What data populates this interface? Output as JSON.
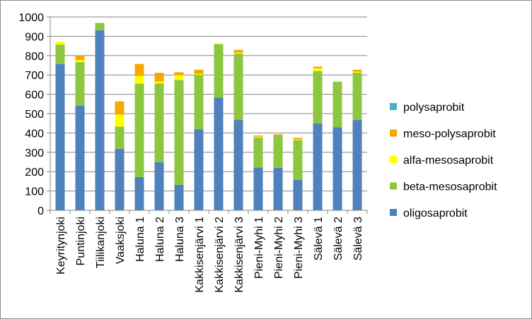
{
  "chart_data": {
    "type": "bar",
    "stacked": true,
    "categories": [
      "Keyritynjoki",
      "Puntinjoki",
      "Tiilikanjoki",
      "Vaaksjoki",
      "Haluna 1",
      "Haluna 2",
      "Haluna 3",
      "Kakkisenjärvi 1",
      "Kakkisenjärvi 2",
      "Kakkisenjärvi 3",
      "Pieni-Myhi 1",
      "Pieni-Myhi 2",
      "Pieni-Myhi 3",
      "Sälevä 1",
      "Sälevä 2",
      "Sälevä 3"
    ],
    "series": [
      {
        "name": "oligosaprobit",
        "color": "#4f81bd",
        "values": [
          757,
          541,
          931,
          318,
          172,
          249,
          132,
          419,
          582,
          467,
          221,
          220,
          158,
          450,
          430,
          467
        ]
      },
      {
        "name": "beta-mesosaprobit",
        "color": "#8dc63f",
        "values": [
          100,
          226,
          38,
          115,
          483,
          407,
          542,
          281,
          278,
          343,
          155,
          170,
          205,
          270,
          235,
          245
        ]
      },
      {
        "name": "alfa-mesosaprobit",
        "color": "#ffff00",
        "values": [
          14,
          10,
          0,
          62,
          40,
          10,
          25,
          5,
          2,
          5,
          5,
          0,
          5,
          15,
          0,
          5
        ]
      },
      {
        "name": "meso-polysaprobit",
        "color": "#f5a800",
        "values": [
          0,
          25,
          0,
          68,
          62,
          45,
          15,
          22,
          0,
          15,
          6,
          3,
          7,
          8,
          0,
          10
        ]
      },
      {
        "name": "polysaprobit",
        "color": "#4bacc6",
        "values": [
          0,
          0,
          0,
          0,
          0,
          0,
          0,
          0,
          0,
          0,
          0,
          0,
          0,
          0,
          0,
          0
        ]
      }
    ],
    "ylim": [
      0,
      1000
    ],
    "yticks": [
      0,
      100,
      200,
      300,
      400,
      500,
      600,
      700,
      800,
      900,
      1000
    ],
    "grid": true,
    "legend_position": "right",
    "legend_order": [
      "polysaprobit",
      "meso-polysaprobit",
      "alfa-mesosaprobit",
      "beta-mesosaprobit",
      "oligosaprobit"
    ],
    "title": "",
    "xlabel": "",
    "ylabel": ""
  }
}
